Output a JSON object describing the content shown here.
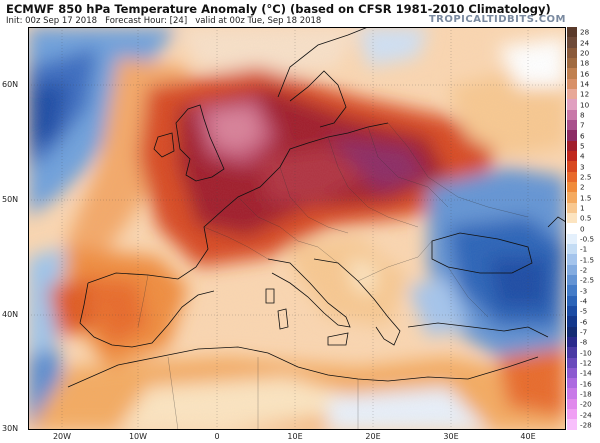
{
  "header": {
    "title": "ECMWF 850 hPa Temperature Anomaly (°C) (based on CFSR 1981-2010 Climatology)",
    "init": "Init: 00z Sep 17 2018",
    "forecast_hour": "Forecast Hour: [24]",
    "valid": "valid at 00z Tue, Sep 18 2018",
    "brand": "TROPICALTIDBITS.COM"
  },
  "map": {
    "lat_labels": [
      "60N",
      "50N",
      "40N",
      "30N"
    ],
    "lon_labels": [
      "20W",
      "10W",
      "0",
      "10E",
      "20E",
      "30E",
      "40E"
    ]
  },
  "colorbar": {
    "labels": [
      "28",
      "24",
      "20",
      "18",
      "16",
      "14",
      "12",
      "10",
      "8",
      "7",
      "6",
      "5",
      "4",
      "3",
      "2.5",
      "2",
      "1.5",
      "1",
      "0.5",
      "0",
      "-0.5",
      "-1",
      "-1.5",
      "-2",
      "-2.5",
      "-3",
      "-4",
      "-5",
      "-6",
      "-7",
      "-8",
      "-10",
      "-12",
      "-14",
      "-16",
      "-18",
      "-20",
      "-24",
      "-28"
    ],
    "colors": [
      "#5a3a2a",
      "#6e4a38",
      "#8a5a3a",
      "#a06a40",
      "#c08050",
      "#d89068",
      "#e8a898",
      "#e0a0c0",
      "#c878a8",
      "#a8508c",
      "#8c2c64",
      "#a01e2c",
      "#c0281e",
      "#d84820",
      "#e86a2c",
      "#f08c3c",
      "#f4aa60",
      "#f8c890",
      "#fce4c0",
      "#ffffff",
      "#e4f0fc",
      "#c4dcf4",
      "#a4c4ec",
      "#84ace0",
      "#6494d4",
      "#447cc8",
      "#2c64b8",
      "#1c4ca4",
      "#14388c",
      "#142c74",
      "#2a2a8c",
      "#4a3aa4",
      "#6a4abc",
      "#8c5ad0",
      "#ac6ae0",
      "#c87ae8",
      "#e08aec",
      "#f0a0f4",
      "#f8c0fc"
    ]
  }
}
